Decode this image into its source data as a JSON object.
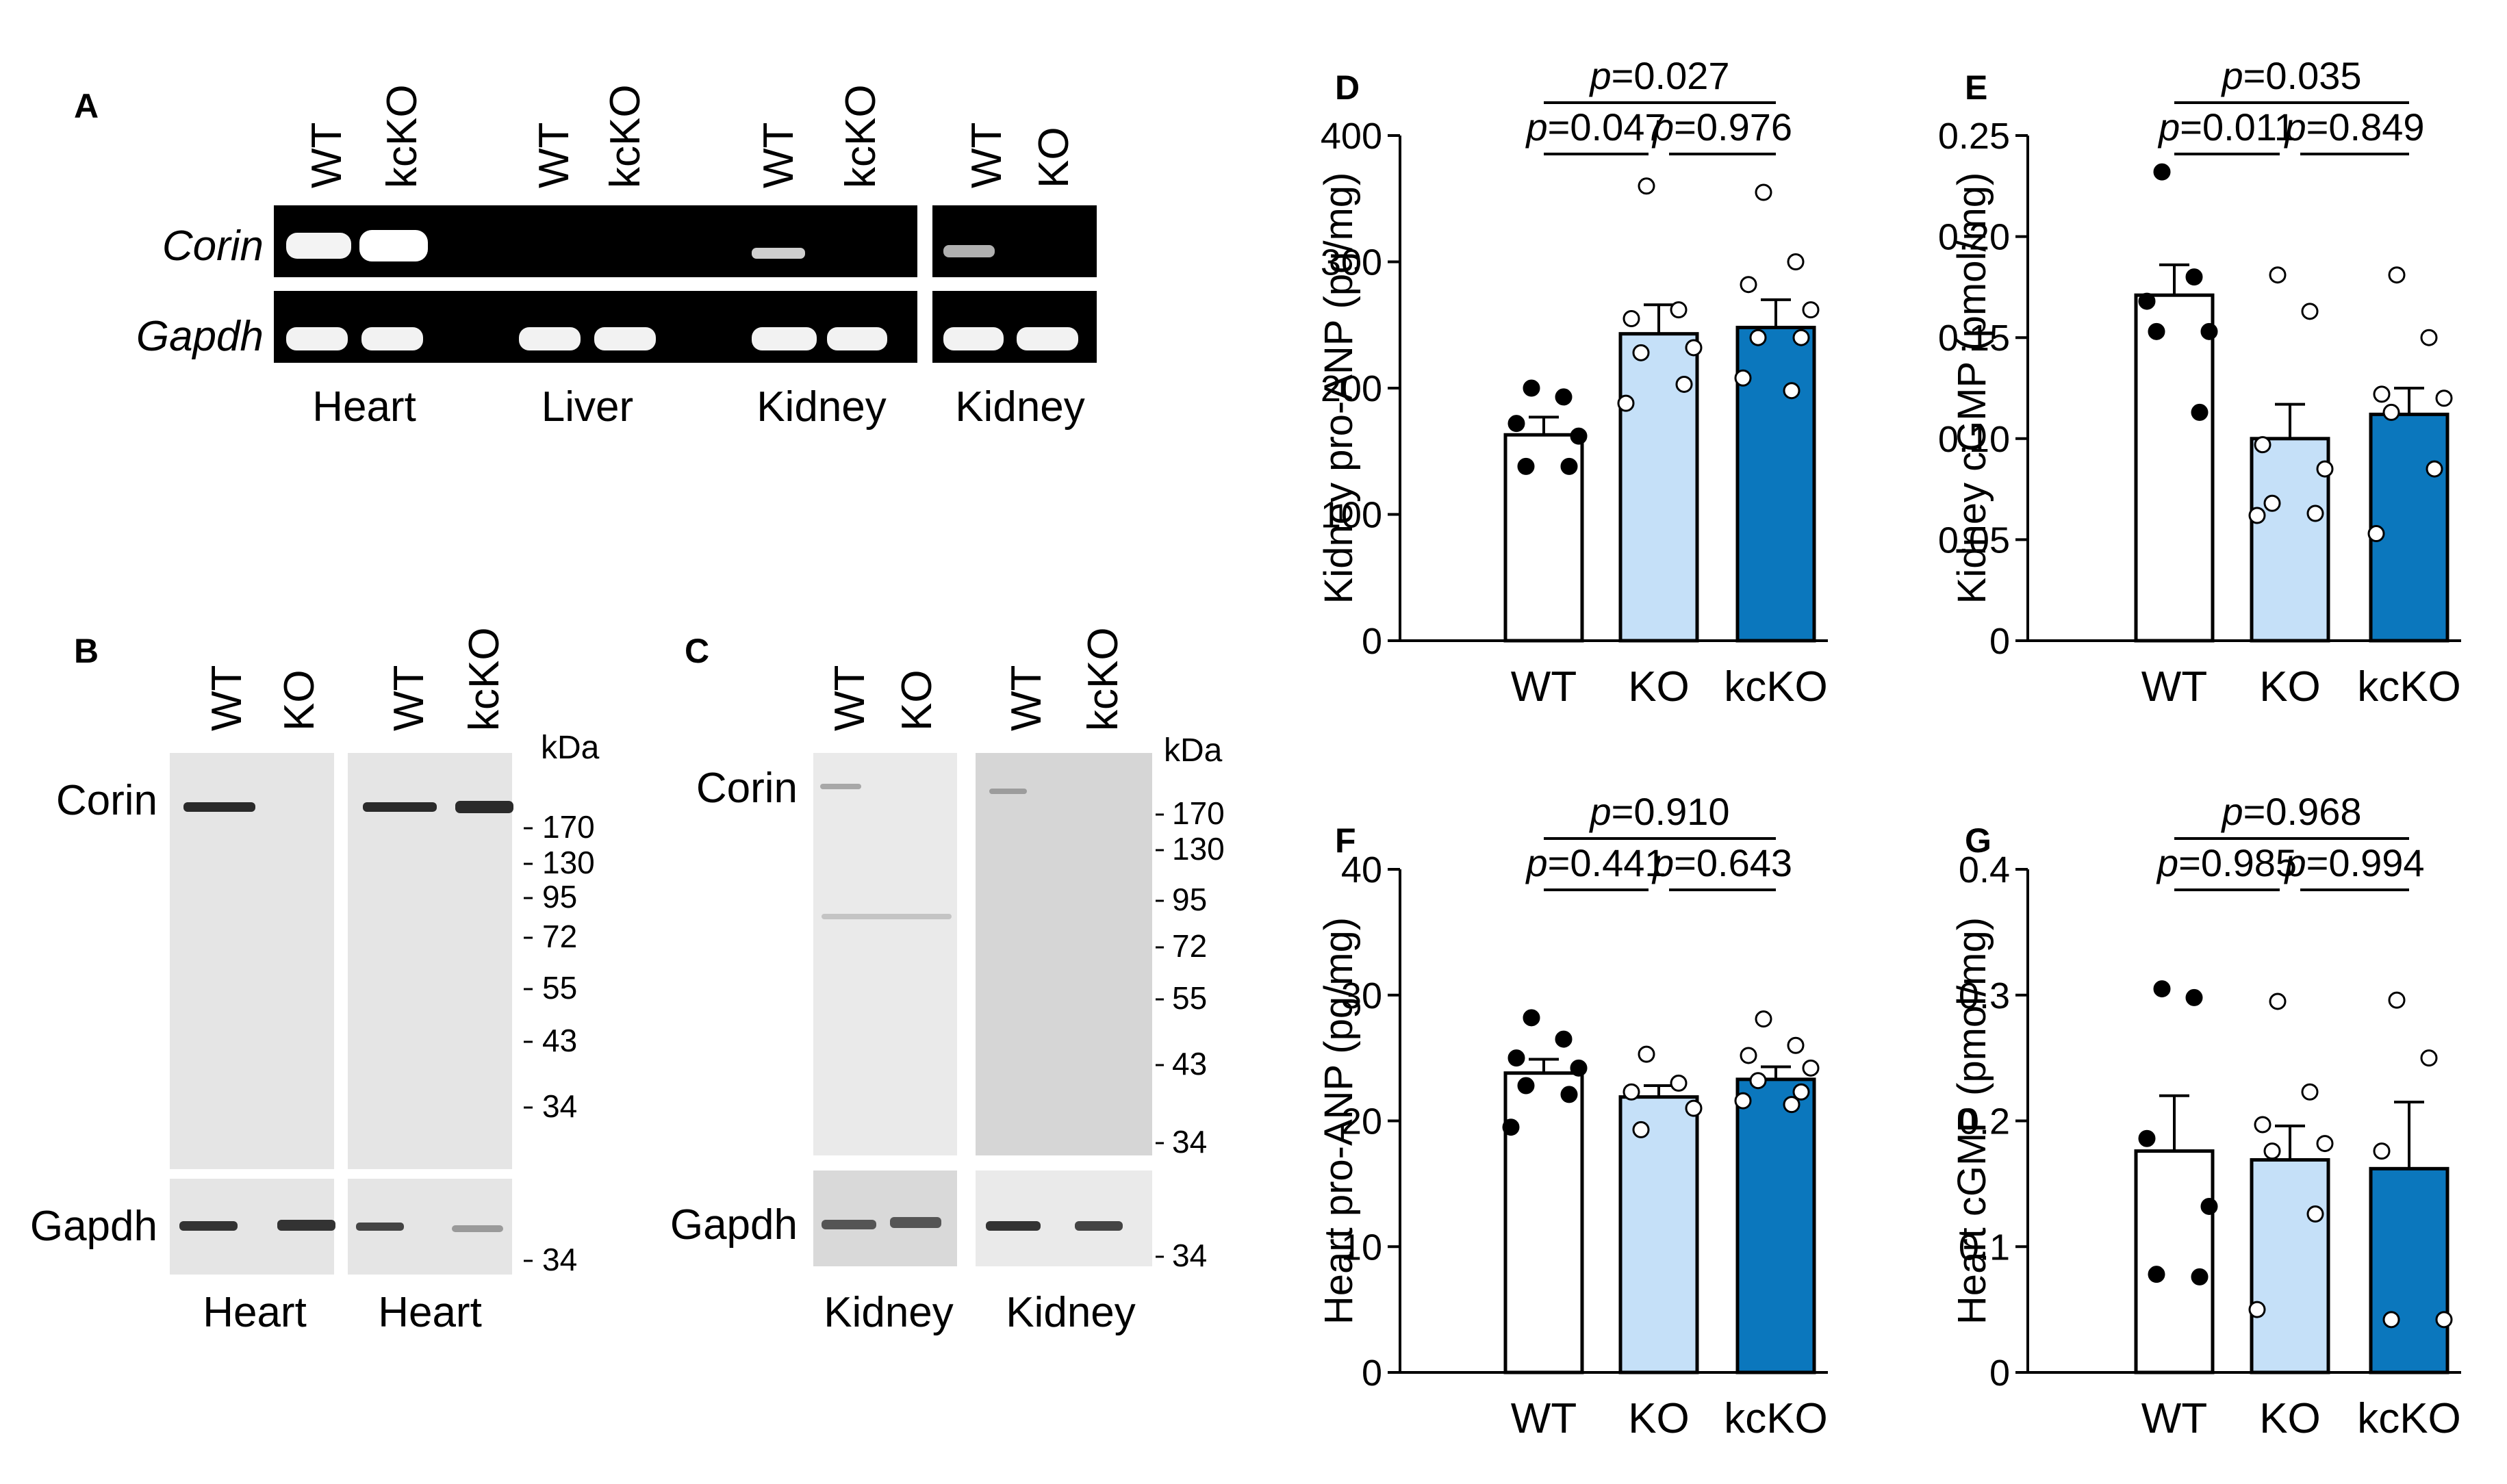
{
  "panelA": {
    "letter": "A",
    "lane_labels": [
      "WT",
      "kcKO",
      "WT",
      "kcKO",
      "WT",
      "kcKO",
      "WT",
      "KO"
    ],
    "genes": [
      "Corin",
      "Gapdh"
    ],
    "tissues": [
      "Heart",
      "Liver",
      "Kidney",
      "Kidney"
    ]
  },
  "panelB": {
    "letter": "B",
    "lane_labels": [
      "WT",
      "KO",
      "WT",
      "kcKO"
    ],
    "kda": "kDa",
    "markers": [
      "170",
      "130",
      "95",
      "72",
      "55",
      "43",
      "34"
    ],
    "gapdh_marker": "34",
    "proteins": [
      "Corin",
      "Gapdh"
    ],
    "tissues": [
      "Heart",
      "Heart"
    ]
  },
  "panelC": {
    "letter": "C",
    "lane_labels": [
      "WT",
      "KO",
      "WT",
      "kcKO"
    ],
    "kda": "kDa",
    "markers": [
      "170",
      "130",
      "95",
      "72",
      "55",
      "43",
      "34"
    ],
    "gapdh_marker": "34",
    "proteins": [
      "Corin",
      "Gapdh"
    ],
    "tissues": [
      "Kidney",
      "Kidney"
    ]
  },
  "colors": {
    "wt": "#ffffff",
    "ko": "#c5e0f8",
    "kcko": "#0b77bd",
    "gel_bg": "#000000",
    "blot_bg": "#e6e6e6"
  },
  "chart_data": [
    {
      "panel": "D",
      "type": "bar",
      "ylabel": "Kidney pro-ANP (pg/mg)",
      "categories": [
        "WT",
        "KO",
        "kcKO"
      ],
      "ylim": [
        0,
        400
      ],
      "yticks": [
        0,
        100,
        200,
        300,
        400
      ],
      "values": [
        163,
        243,
        248
      ],
      "sem": [
        14,
        23,
        22
      ],
      "points": [
        [
          200,
          193,
          172,
          162,
          138,
          138
        ],
        [
          360,
          262,
          255,
          232,
          228,
          203,
          188
        ],
        [
          355,
          300,
          282,
          262,
          240,
          240,
          208,
          198
        ]
      ],
      "pvalues": [
        "0.027",
        "0.047",
        "0.976"
      ]
    },
    {
      "panel": "E",
      "type": "bar",
      "ylabel": "Kidney cGMP (pmol/mg)",
      "categories": [
        "WT",
        "KO",
        "kcKO"
      ],
      "ylim": [
        0,
        0.25
      ],
      "yticks": [
        "0",
        "0.05",
        "0.10",
        "0.15",
        "0.20",
        "0.25"
      ],
      "values": [
        0.171,
        0.1,
        0.112
      ],
      "sem": [
        0.015,
        0.017,
        0.013
      ],
      "points": [
        [
          0.232,
          0.18,
          0.168,
          0.153,
          0.153,
          0.113
        ],
        [
          0.181,
          0.163,
          0.097,
          0.085,
          0.068,
          0.063,
          0.062
        ],
        [
          0.181,
          0.15,
          0.122,
          0.12,
          0.113,
          0.085,
          0.053
        ]
      ],
      "pvalues": [
        "0.035",
        "0.011",
        "0.849"
      ]
    },
    {
      "panel": "F",
      "type": "bar",
      "ylabel": "Heart pro-ANP (pg/mg)",
      "categories": [
        "WT",
        "KO",
        "kcKO"
      ],
      "ylim": [
        0,
        40
      ],
      "yticks": [
        0,
        10,
        20,
        30,
        40
      ],
      "values": [
        23.8,
        21.9,
        23.3
      ],
      "sem": [
        1.1,
        0.9,
        1.0
      ],
      "points": [
        [
          28.2,
          26.5,
          25.0,
          24.2,
          22.8,
          22.1,
          19.5
        ],
        [
          25.3,
          23.0,
          22.3,
          21.0,
          19.3
        ],
        [
          28.1,
          26.0,
          25.2,
          24.2,
          23.2,
          22.3,
          21.6,
          21.3
        ]
      ],
      "pvalues": [
        "0.910",
        "0.441",
        "0.643"
      ]
    },
    {
      "panel": "G",
      "type": "bar",
      "ylabel": "Heart cGMP (pmol/mg)",
      "categories": [
        "WT",
        "KO",
        "kcKO"
      ],
      "ylim": [
        0,
        0.4
      ],
      "yticks": [
        "0",
        "0.1",
        "0.2",
        "0.3",
        "0.4"
      ],
      "values": [
        0.176,
        0.169,
        0.162
      ],
      "sem": [
        0.044,
        0.027,
        0.053
      ],
      "points": [
        [
          0.305,
          0.298,
          0.186,
          0.132,
          0.078,
          0.076
        ],
        [
          0.295,
          0.223,
          0.197,
          0.182,
          0.176,
          0.126,
          0.05
        ],
        [
          0.296,
          0.25,
          0.176,
          0.042,
          0.042
        ]
      ],
      "pvalues": [
        "0.968",
        "0.985",
        "0.994"
      ]
    }
  ]
}
